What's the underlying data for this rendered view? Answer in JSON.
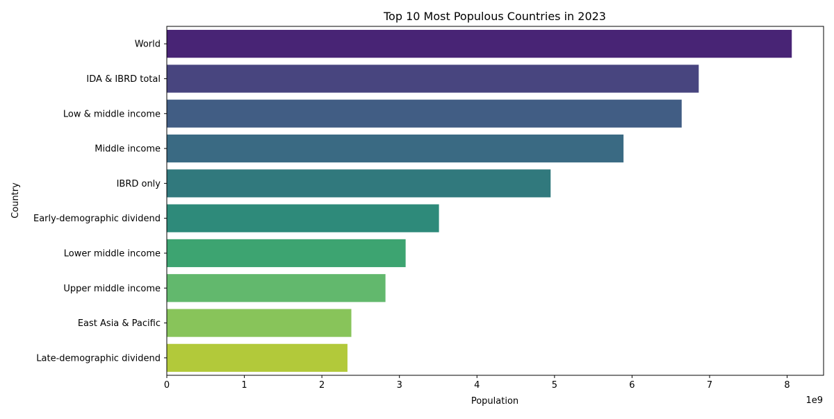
{
  "chart_data": {
    "type": "bar",
    "orientation": "horizontal",
    "title": "Top 10 Most Populous Countries in 2023",
    "xlabel": "Population",
    "ylabel": "Country",
    "x_offset_label": "1e9",
    "x_scale_factor": 1000000000,
    "xlim": [
      0,
      8.47
    ],
    "xticks": [
      0,
      1,
      2,
      3,
      4,
      5,
      6,
      7,
      8
    ],
    "xtick_labels": [
      "0",
      "1",
      "2",
      "3",
      "4",
      "5",
      "6",
      "7",
      "8"
    ],
    "grid": false,
    "categories": [
      "World",
      "IDA & IBRD total",
      "Low & middle income",
      "Middle income",
      "IBRD only",
      "Early-demographic dividend",
      "Lower middle income",
      "Upper middle income",
      "East Asia & Pacific",
      "Late-demographic dividend"
    ],
    "values": [
      8.06,
      6.86,
      6.64,
      5.89,
      4.95,
      3.51,
      3.08,
      2.82,
      2.38,
      2.33
    ],
    "colors": [
      "#482475",
      "#48457F",
      "#415D84",
      "#3A6A83",
      "#31797D",
      "#2E8A7A",
      "#3DA471",
      "#62B86D",
      "#88C45A",
      "#B2C93A"
    ]
  }
}
